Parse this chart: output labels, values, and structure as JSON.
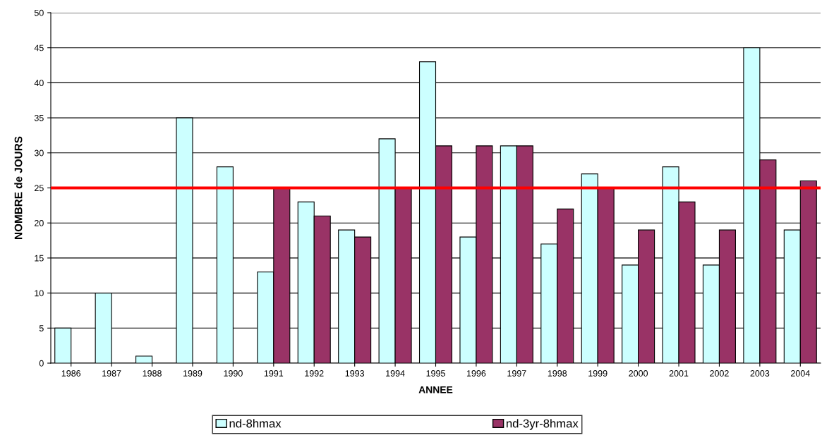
{
  "chart_data": {
    "type": "bar",
    "xlabel": "ANNEE",
    "ylabel": "NOMBRE de JOURS",
    "categories": [
      "1986",
      "1987",
      "1988",
      "1989",
      "1990",
      "1991",
      "1992",
      "1993",
      "1994",
      "1995",
      "1996",
      "1997",
      "1998",
      "1999",
      "2000",
      "2001",
      "2002",
      "2003",
      "2004"
    ],
    "series": [
      {
        "name": "nd-8hmax",
        "color": "#ccffff",
        "values": [
          5,
          10,
          1,
          35,
          28,
          13,
          23,
          19,
          32,
          43,
          18,
          31,
          17,
          27,
          14,
          28,
          14,
          45,
          19
        ]
      },
      {
        "name": "nd-3yr-8hmax",
        "color": "#993366",
        "values": [
          null,
          null,
          null,
          null,
          null,
          25,
          21,
          18,
          25,
          31,
          31,
          31,
          22,
          25,
          19,
          23,
          19,
          29,
          26
        ]
      }
    ],
    "ylim": [
      0,
      50
    ],
    "yticks": [
      0,
      5,
      10,
      15,
      20,
      25,
      30,
      35,
      40,
      45,
      50
    ],
    "grid": "y",
    "legend": "bottom",
    "ref_lines": [
      {
        "axis": "y",
        "value": 25,
        "color": "#ff0000"
      }
    ]
  }
}
